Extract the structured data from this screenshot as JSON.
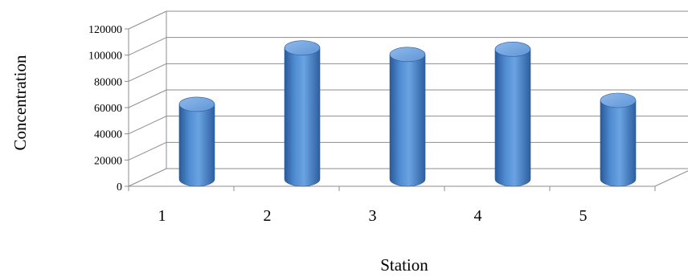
{
  "chart_data": {
    "type": "bar",
    "style": "3d-cylinder",
    "categories": [
      "1",
      "2",
      "3",
      "4",
      "5"
    ],
    "values": [
      57000,
      100000,
      95000,
      99000,
      60000
    ],
    "xlabel": "Station",
    "ylabel": "Concentration",
    "ylim": [
      0,
      120000
    ],
    "yticks": [
      "0",
      "20000",
      "40000",
      "60000",
      "80000",
      "100000",
      "120000"
    ],
    "grid": true,
    "legend": "none",
    "bar_color": "#4f8bd0",
    "bar_dark_color": "#2a5a9a",
    "bar_light_color": "#8fb9ea",
    "grid_color": "#8c8c8c"
  }
}
